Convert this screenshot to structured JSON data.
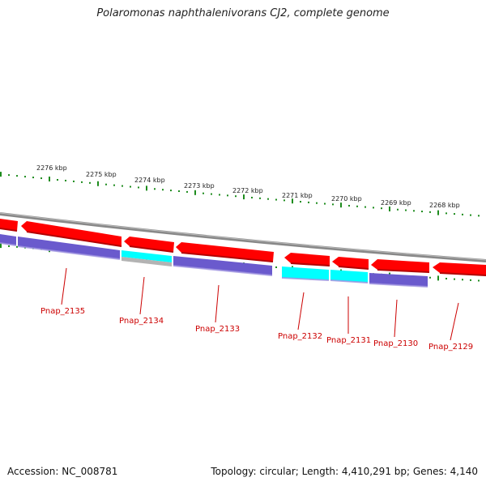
{
  "title": "Polaromonas naphthalenivorans CJ2, complete genome",
  "footer": {
    "accession": "Accession: NC_008781",
    "summary": "Topology: circular; Length: 4,410,291 bp; Genes: 4,140"
  },
  "colors": {
    "backbone": "#888888",
    "strand_red": "#ff0000",
    "strand_cyan": "#00ffff",
    "strand_purple": "#6a5acd",
    "strand_grey": "#b3b3b3",
    "ticks": "#1e8c1e",
    "label_red": "#cc0000"
  },
  "kbp_labels": [
    "2276 kbp",
    "2275 kbp",
    "2274 kbp",
    "2273 kbp",
    "2272 kbp",
    "2271 kbp",
    "2270 kbp",
    "2269 kbp",
    "2268 kbp"
  ],
  "gene_labels": [
    "Pnap_2135",
    "Pnap_2134",
    "Pnap_2133",
    "Pnap_2132",
    "Pnap_2131",
    "Pnap_2130",
    "Pnap_2129"
  ]
}
